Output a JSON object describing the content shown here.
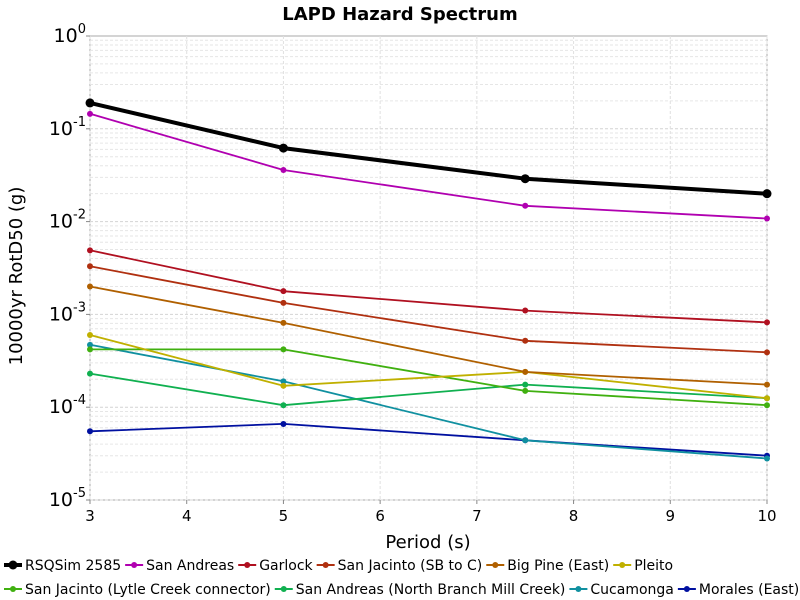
{
  "chart_data": {
    "type": "line",
    "title": "LAPD Hazard Spectrum",
    "xlabel": "Period (s)",
    "ylabel": "10000yr RotD50 (g)",
    "xlim": [
      3,
      10
    ],
    "ylim": [
      1e-05,
      1
    ],
    "yscale": "log",
    "grid": true,
    "legend_position": "bottom",
    "x": [
      3,
      5,
      7.5,
      10
    ],
    "x_ticks": [
      "3",
      "4",
      "5",
      "6",
      "7",
      "8",
      "9",
      "10"
    ],
    "y_ticks": [
      {
        "base": "10",
        "exp": "0"
      },
      {
        "base": "10",
        "exp": "-1"
      },
      {
        "base": "10",
        "exp": "-2"
      },
      {
        "base": "10",
        "exp": "-3"
      },
      {
        "base": "10",
        "exp": "-4"
      },
      {
        "base": "10",
        "exp": "-5"
      }
    ],
    "series": [
      {
        "name": "RSQSim 2585",
        "color": "#000000",
        "values": [
          0.19,
          0.062,
          0.029,
          0.02
        ]
      },
      {
        "name": "San Andreas",
        "color": "#b000b0",
        "values": [
          0.145,
          0.036,
          0.0148,
          0.0108
        ]
      },
      {
        "name": "Garlock",
        "color": "#b01020",
        "values": [
          0.0049,
          0.00178,
          0.0011,
          0.00082
        ]
      },
      {
        "name": "San Jacinto (SB to C)",
        "color": "#b03010",
        "values": [
          0.0033,
          0.00133,
          0.00052,
          0.00039
        ]
      },
      {
        "name": "Big Pine (East)",
        "color": "#b06000",
        "values": [
          0.002,
          0.00081,
          0.00024,
          0.000175
        ]
      },
      {
        "name": "Pleito",
        "color": "#c0b000",
        "values": [
          0.0006,
          0.00017,
          0.00024,
          0.000125
        ]
      },
      {
        "name": "San Jacinto (Lytle Creek connector)",
        "color": "#40b010",
        "values": [
          0.00042,
          0.00042,
          0.00015,
          0.000105
        ]
      },
      {
        "name": "San Andreas (North Branch Mill Creek)",
        "color": "#10b050",
        "values": [
          0.00023,
          0.000105,
          0.000175,
          0.000125
        ]
      },
      {
        "name": "Cucamonga",
        "color": "#1090a0",
        "values": [
          0.00047,
          0.00019,
          4.4e-05,
          2.8e-05
        ]
      },
      {
        "name": "Morales (East)",
        "color": "#0010a0",
        "values": [
          5.5e-05,
          6.6e-05,
          4.4e-05,
          3e-05
        ]
      }
    ]
  }
}
